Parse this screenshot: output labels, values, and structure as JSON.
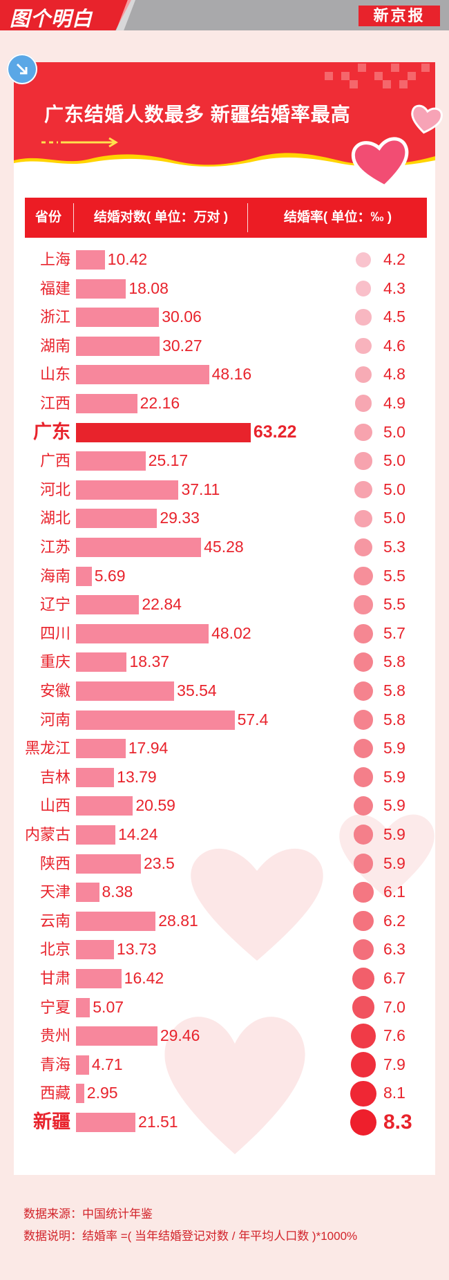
{
  "brand": {
    "column_name": "图个明白",
    "paper": "新京报"
  },
  "header": {
    "title": "广东结婚人数最多 新疆结婚率最高"
  },
  "table": {
    "col_province": "省份",
    "col_couples": "结婚对数( 单位：万对 )",
    "col_rate": "结婚率( 单位：‰ )"
  },
  "colors": {
    "accent": "#e8232c",
    "bar": "#f7879c",
    "header": "#ef2d36",
    "background": "#fbe9e6"
  },
  "chart_data": {
    "type": "bar",
    "orientation": "horizontal",
    "categories": [
      "上海",
      "福建",
      "浙江",
      "湖南",
      "山东",
      "江西",
      "广东",
      "广西",
      "河北",
      "湖北",
      "江苏",
      "海南",
      "辽宁",
      "四川",
      "重庆",
      "安徽",
      "河南",
      "黑龙江",
      "吉林",
      "山西",
      "内蒙古",
      "陕西",
      "天津",
      "云南",
      "北京",
      "甘肃",
      "宁夏",
      "贵州",
      "青海",
      "西藏",
      "新疆"
    ],
    "series": [
      {
        "name": "结婚对数( 单位：万对 )",
        "values": [
          10.42,
          18.08,
          30.06,
          30.27,
          48.16,
          22.16,
          63.22,
          25.17,
          37.11,
          29.33,
          45.28,
          5.69,
          22.84,
          48.02,
          18.37,
          35.54,
          57.4,
          17.94,
          13.79,
          20.59,
          14.24,
          23.5,
          8.38,
          28.81,
          13.73,
          16.42,
          5.07,
          29.46,
          4.71,
          2.95,
          21.51
        ],
        "labels": [
          "10.42",
          "18.08",
          "30.06",
          "30.27",
          "48.16",
          "22.16",
          "63.22",
          "25.17",
          "37.11",
          "29.33",
          "45.28",
          "5.69",
          "22.84",
          "48.02",
          "18.37",
          "35.54",
          "57.4",
          "17.94",
          "13.79",
          "20.59",
          "14.24",
          "23.5",
          "8.38",
          "28.81",
          "13.73",
          "16.42",
          "5.07",
          "29.46",
          "4.71",
          "2.95",
          "21.51"
        ]
      },
      {
        "name": "结婚率( 单位：‰ )",
        "values": [
          4.2,
          4.3,
          4.5,
          4.6,
          4.8,
          4.9,
          5.0,
          5.0,
          5.0,
          5.0,
          5.3,
          5.5,
          5.5,
          5.7,
          5.8,
          5.8,
          5.8,
          5.9,
          5.9,
          5.9,
          5.9,
          5.9,
          6.1,
          6.2,
          6.3,
          6.7,
          7.0,
          7.6,
          7.9,
          8.1,
          8.3
        ],
        "labels": [
          "4.2",
          "4.3",
          "4.5",
          "4.6",
          "4.8",
          "4.9",
          "5.0",
          "5.0",
          "5.0",
          "5.0",
          "5.3",
          "5.5",
          "5.5",
          "5.7",
          "5.8",
          "5.8",
          "5.8",
          "5.9",
          "5.9",
          "5.9",
          "5.9",
          "5.9",
          "6.1",
          "6.2",
          "6.3",
          "6.7",
          "7.0",
          "7.6",
          "7.9",
          "8.1",
          "8.3"
        ]
      }
    ],
    "highlight": [
      "广东",
      "新疆"
    ],
    "grid": false
  },
  "footer": {
    "source": "数据来源：中国统计年鉴",
    "note": "数据说明：结婚率 =( 当年结婚登记对数 / 年平均人口数 )*1000%"
  }
}
